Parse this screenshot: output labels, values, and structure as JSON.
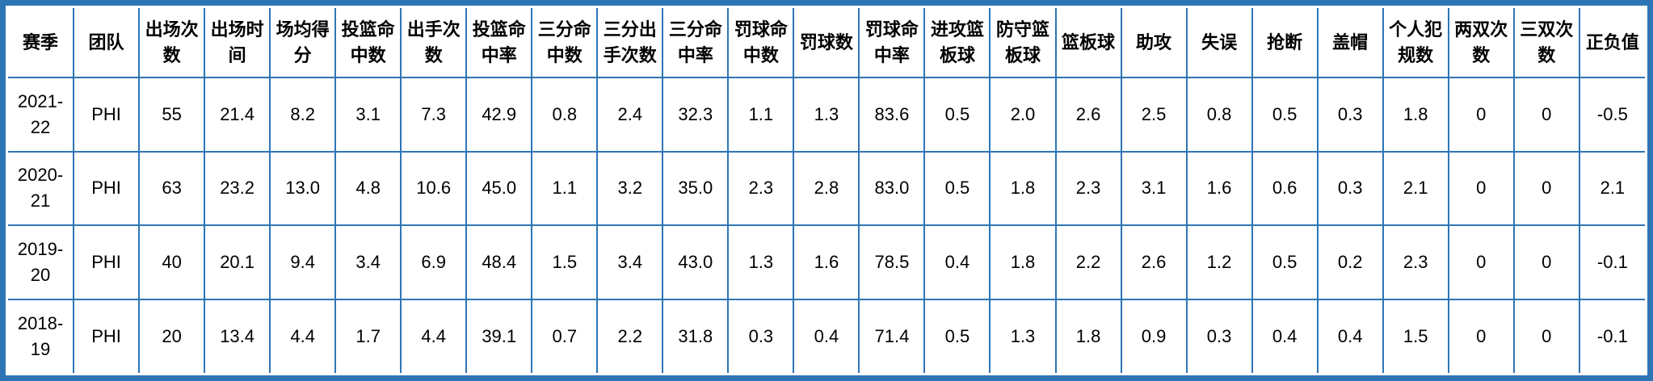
{
  "colors": {
    "border": "#2E75B6",
    "grid": "#2E75B6",
    "text": "#000000",
    "background": "#FFFFFF"
  },
  "chart_data": {
    "type": "table",
    "columns": [
      "赛季",
      "团队",
      "出场次数",
      "出场时间",
      "场均得分",
      "投篮命中数",
      "出手次数",
      "投篮命中率",
      "三分命中数",
      "三分出手次数",
      "三分命中率",
      "罚球命中数",
      "罚球数",
      "罚球命中率",
      "进攻篮板球",
      "防守篮板球",
      "篮板球",
      "助攻",
      "失误",
      "抢断",
      "盖帽",
      "个人犯规数",
      "两双次数",
      "三双次数",
      "正负值"
    ],
    "rows": [
      [
        "2021-22",
        "PHI",
        "55",
        "21.4",
        "8.2",
        "3.1",
        "7.3",
        "42.9",
        "0.8",
        "2.4",
        "32.3",
        "1.1",
        "1.3",
        "83.6",
        "0.5",
        "2.0",
        "2.6",
        "2.5",
        "0.8",
        "0.5",
        "0.3",
        "1.8",
        "0",
        "0",
        "-0.5"
      ],
      [
        "2020-21",
        "PHI",
        "63",
        "23.2",
        "13.0",
        "4.8",
        "10.6",
        "45.0",
        "1.1",
        "3.2",
        "35.0",
        "2.3",
        "2.8",
        "83.0",
        "0.5",
        "1.8",
        "2.3",
        "3.1",
        "1.6",
        "0.6",
        "0.3",
        "2.1",
        "0",
        "0",
        "2.1"
      ],
      [
        "2019-20",
        "PHI",
        "40",
        "20.1",
        "9.4",
        "3.4",
        "6.9",
        "48.4",
        "1.5",
        "3.4",
        "43.0",
        "1.3",
        "1.6",
        "78.5",
        "0.4",
        "1.8",
        "2.2",
        "2.6",
        "1.2",
        "0.5",
        "0.2",
        "2.3",
        "0",
        "0",
        "-0.1"
      ],
      [
        "2018-19",
        "PHI",
        "20",
        "13.4",
        "4.4",
        "1.7",
        "4.4",
        "39.1",
        "0.7",
        "2.2",
        "31.8",
        "0.3",
        "0.4",
        "71.4",
        "0.5",
        "1.3",
        "1.8",
        "0.9",
        "0.3",
        "0.4",
        "0.4",
        "1.5",
        "0",
        "0",
        "-0.1"
      ]
    ]
  }
}
